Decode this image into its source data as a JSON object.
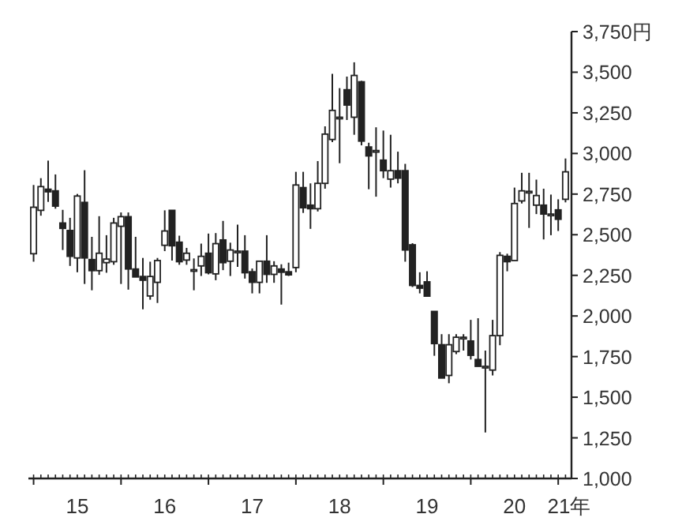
{
  "chart_data": {
    "type": "candlestick",
    "x": [
      "2015-01",
      "2015-02",
      "2015-03",
      "2015-04",
      "2015-05",
      "2015-06",
      "2015-07",
      "2015-08",
      "2015-09",
      "2015-10",
      "2015-11",
      "2015-12",
      "2016-01",
      "2016-02",
      "2016-03",
      "2016-04",
      "2016-05",
      "2016-06",
      "2016-07",
      "2016-08",
      "2016-09",
      "2016-10",
      "2016-11",
      "2016-12",
      "2017-01",
      "2017-02",
      "2017-03",
      "2017-04",
      "2017-05",
      "2017-06",
      "2017-07",
      "2017-08",
      "2017-09",
      "2017-10",
      "2017-11",
      "2017-12",
      "2018-01",
      "2018-02",
      "2018-03",
      "2018-04",
      "2018-05",
      "2018-06",
      "2018-07",
      "2018-08",
      "2018-09",
      "2018-10",
      "2018-11",
      "2018-12",
      "2019-01",
      "2019-02",
      "2019-03",
      "2019-04",
      "2019-05",
      "2019-06",
      "2019-07",
      "2019-08",
      "2019-09",
      "2019-10",
      "2019-11",
      "2019-12",
      "2020-01",
      "2020-02",
      "2020-03",
      "2020-04",
      "2020-05",
      "2020-06",
      "2020-07",
      "2020-08",
      "2020-09",
      "2020-10",
      "2020-11",
      "2020-12",
      "2021-01",
      "2021-02"
    ],
    "ohlc": [
      [
        2383,
        2806,
        2334,
        2669
      ],
      [
        2650,
        2848,
        2617,
        2796
      ],
      [
        2780,
        2956,
        2702,
        2764
      ],
      [
        2770,
        2871,
        2660,
        2676
      ],
      [
        2572,
        2653,
        2406,
        2539
      ],
      [
        2526,
        2604,
        2308,
        2367
      ],
      [
        2357,
        2751,
        2269,
        2738
      ],
      [
        2699,
        2897,
        2197,
        2357
      ],
      [
        2347,
        2487,
        2158,
        2279
      ],
      [
        2279,
        2614,
        2253,
        2386
      ],
      [
        2328,
        2497,
        2266,
        2350
      ],
      [
        2334,
        2604,
        2315,
        2572
      ],
      [
        2552,
        2637,
        2197,
        2611
      ],
      [
        2611,
        2637,
        2162,
        2289
      ],
      [
        2289,
        2487,
        2240,
        2240
      ],
      [
        2243,
        2357,
        2041,
        2220
      ],
      [
        2123,
        2334,
        2100,
        2243
      ],
      [
        2207,
        2357,
        2080,
        2341
      ],
      [
        2435,
        2650,
        2399,
        2523
      ],
      [
        2650,
        2650,
        2341,
        2432
      ],
      [
        2454,
        2494,
        2315,
        2334
      ],
      [
        2344,
        2419,
        2315,
        2386
      ],
      [
        2285,
        2354,
        2158,
        2285
      ],
      [
        2308,
        2445,
        2246,
        2367
      ],
      [
        2386,
        2507,
        2256,
        2266
      ],
      [
        2259,
        2510,
        2220,
        2445
      ],
      [
        2468,
        2585,
        2282,
        2328
      ],
      [
        2337,
        2451,
        2246,
        2406
      ],
      [
        2399,
        2562,
        2302,
        2399
      ],
      [
        2399,
        2497,
        2230,
        2266
      ],
      [
        2272,
        2292,
        2139,
        2207
      ],
      [
        2207,
        2337,
        2139,
        2337
      ],
      [
        2337,
        2497,
        2204,
        2256
      ],
      [
        2256,
        2337,
        2204,
        2308
      ],
      [
        2289,
        2318,
        2070,
        2269
      ],
      [
        2272,
        2328,
        2246,
        2253
      ],
      [
        2298,
        2887,
        2269,
        2806
      ],
      [
        2790,
        2887,
        2634,
        2666
      ],
      [
        2682,
        2816,
        2536,
        2660
      ],
      [
        2660,
        2953,
        2643,
        2816
      ],
      [
        2816,
        3167,
        2783,
        3119
      ],
      [
        3086,
        3490,
        3070,
        3265
      ],
      [
        3223,
        3402,
        2940,
        3223
      ],
      [
        3392,
        3473,
        3206,
        3298
      ],
      [
        3223,
        3561,
        3115,
        3480
      ],
      [
        3441,
        3447,
        3050,
        3076
      ],
      [
        3040,
        3066,
        2780,
        2985
      ],
      [
        3018,
        3161,
        2734,
        3018
      ],
      [
        2959,
        3141,
        2848,
        2894
      ],
      [
        2842,
        3115,
        2790,
        2894
      ],
      [
        2894,
        3011,
        2816,
        2848
      ],
      [
        2894,
        2936,
        2334,
        2406
      ],
      [
        2438,
        2448,
        2178,
        2188
      ],
      [
        2188,
        2269,
        2139,
        2171
      ],
      [
        2210,
        2275,
        2122,
        2122
      ],
      [
        2028,
        2028,
        1755,
        1830
      ],
      [
        1823,
        1888,
        1618,
        1618
      ],
      [
        1634,
        1888,
        1586,
        1823
      ],
      [
        1781,
        1888,
        1765,
        1869
      ],
      [
        1869,
        1888,
        1787,
        1869
      ],
      [
        1846,
        1976,
        1732,
        1758
      ],
      [
        1732,
        1986,
        1690,
        1690
      ],
      [
        1690,
        1787,
        1283,
        1690
      ],
      [
        1667,
        1976,
        1634,
        1879
      ],
      [
        1879,
        2393,
        1820,
        2373
      ],
      [
        2367,
        2383,
        2275,
        2334
      ],
      [
        2341,
        2790,
        2341,
        2692
      ],
      [
        2708,
        2881,
        2692,
        2770
      ],
      [
        2767,
        2881,
        2542,
        2767
      ],
      [
        2682,
        2839,
        2627,
        2741
      ],
      [
        2682,
        2783,
        2471,
        2627
      ],
      [
        2627,
        2747,
        2497,
        2627
      ],
      [
        2653,
        2718,
        2523,
        2595
      ],
      [
        2718,
        2969,
        2699,
        2887
      ]
    ],
    "xlim": [
      "2014-12-10",
      "2021-02-24"
    ],
    "ylim": [
      1000,
      3750
    ],
    "xticks": [
      {
        "value": "2015-01-01",
        "label": null
      },
      {
        "value": "2015-07-01",
        "label": "15"
      },
      {
        "value": "2016-01-01",
        "label": null
      },
      {
        "value": "2016-07-01",
        "label": "16"
      },
      {
        "value": "2017-01-01",
        "label": null
      },
      {
        "value": "2017-07-01",
        "label": "17"
      },
      {
        "value": "2018-01-01",
        "label": null
      },
      {
        "value": "2018-07-01",
        "label": "18"
      },
      {
        "value": "2019-01-01",
        "label": null
      },
      {
        "value": "2019-07-01",
        "label": "19"
      },
      {
        "value": "2020-01-01",
        "label": null
      },
      {
        "value": "2020-07-01",
        "label": "20"
      },
      {
        "value": "2021-01-01",
        "label": null
      },
      {
        "value": "2021-02-15",
        "label": "21年"
      }
    ],
    "yticks": [
      {
        "value": 1000,
        "label": "1,000"
      },
      {
        "value": 1250,
        "label": "1,250"
      },
      {
        "value": 1500,
        "label": "1,500"
      },
      {
        "value": 1750,
        "label": "1,750"
      },
      {
        "value": 2000,
        "label": "2,000"
      },
      {
        "value": 2250,
        "label": "2,250"
      },
      {
        "value": 2500,
        "label": "2,500"
      },
      {
        "value": 2750,
        "label": "2,750"
      },
      {
        "value": 3000,
        "label": "3,000"
      },
      {
        "value": 3250,
        "label": "3,250"
      },
      {
        "value": 3500,
        "label": "3,500"
      },
      {
        "value": 3750,
        "label": "3,750円"
      }
    ]
  }
}
